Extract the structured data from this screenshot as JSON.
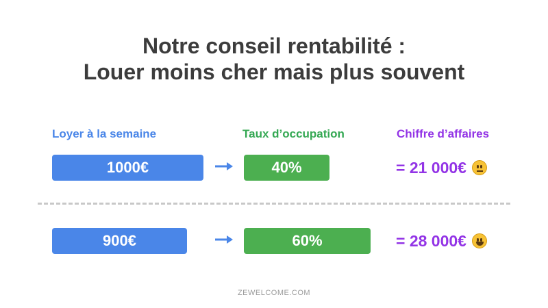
{
  "title": {
    "line1": "Notre conseil rentabilité :",
    "line2": "Louer moins cher mais plus souvent"
  },
  "columns": {
    "rent": "Loyer à la semaine",
    "occupancy": "Taux d’occupation",
    "revenue": "Chiffre d’affaires"
  },
  "scenarios": [
    {
      "rent": "1000€",
      "occupancy": "40%",
      "revenue": "= 21 000€",
      "emoji": "neutral-face-icon"
    },
    {
      "rent": "900€",
      "occupancy": "60%",
      "revenue": "= 28 000€",
      "emoji": "smiley-face-icon"
    }
  ],
  "footer": "ZEWELCOME.COM",
  "colors": {
    "blue": "#4a86e8",
    "green": "#4caf50",
    "purple": "#9334e6",
    "title": "#3c3c3c"
  }
}
